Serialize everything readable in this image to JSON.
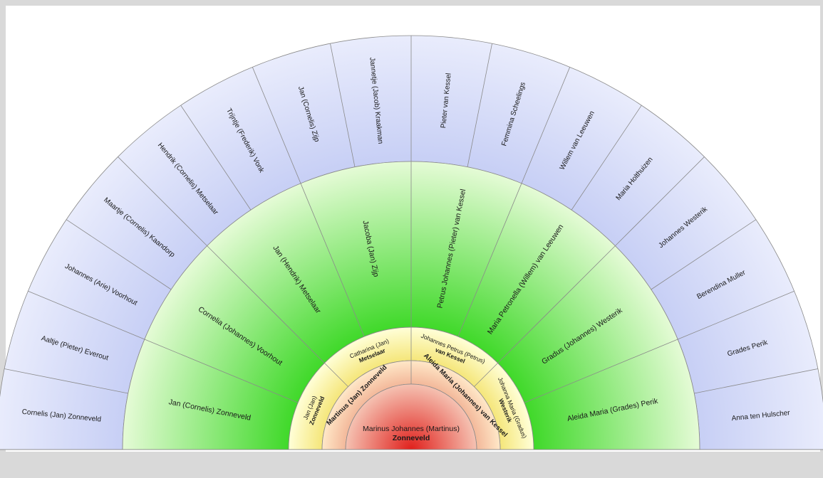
{
  "colors": {
    "background": "#d9d9d9",
    "white_panel": "#ffffff",
    "outer_ring_outer": "#c7cff5",
    "outer_ring_inner": "#e9ecfc",
    "green_ring_outer": "#e5fbd6",
    "green_ring_inner": "#40d92a",
    "yellow_ring_outer": "#ffffd8",
    "yellow_ring_inner": "#f5e67a",
    "orange_ring_outer": "#ffe8c8",
    "orange_ring_inner": "#f3b89a",
    "center_outer": "#f5c2b2",
    "center_inner": "#e0201c",
    "divider": "#8a8a8a"
  },
  "center": {
    "given": "Marinus Johannes (Martinus)",
    "surname": "Zonneveld"
  },
  "parents": [
    {
      "text": "Martinus (Jan) Zonneveld"
    },
    {
      "text": "Aleida Maria (Johannes) van Kessel"
    }
  ],
  "grandparents": [
    {
      "given": "Jan (Jan)",
      "surname": "Zonneveld"
    },
    {
      "given": "Catharina (Jan)",
      "surname": "Metselaar"
    },
    {
      "given": "Johannes Petrus (Petrus)",
      "surname": "van Kessel"
    },
    {
      "given": "Johanna Maria (Gradus)",
      "surname": "Westerik"
    }
  ],
  "great_grandparents": [
    "Jan (Cornelis) Zonneveld",
    "Cornelia (Johannes) Voorhout",
    "Jan (Hendrik) Metselaar",
    "Jacoba (Jan) Zijp",
    "Petrus Johannes (Pieter) van Kessel",
    "Maria Petronella (Willem) van Leeuwen",
    "Gradus (Johannes) Westerik",
    "Aleida Maria (Grades) Perik"
  ],
  "great_great_grandparents": [
    "Cornelis (Jan) Zonneveld",
    "Aaltje (Pieter) Everout",
    "Johannes (Arie) Voorhout",
    "Maartje (Cornelis) Kaandorp",
    "Hendrik (Cornelis) Metselaar",
    "Trijntje (Frederik) Vonk",
    "Jan (Cornelis) Zijp",
    "Jannetje (Jacob) Kraakman",
    "Pieter van Kessel",
    "Femmina Scheelings",
    "Willem van Leeuwen",
    "Maria Holthuizen",
    "Johannes Westerik",
    "Berendina Muller",
    "Grades Perik",
    "Anna ten Hulscher"
  ]
}
